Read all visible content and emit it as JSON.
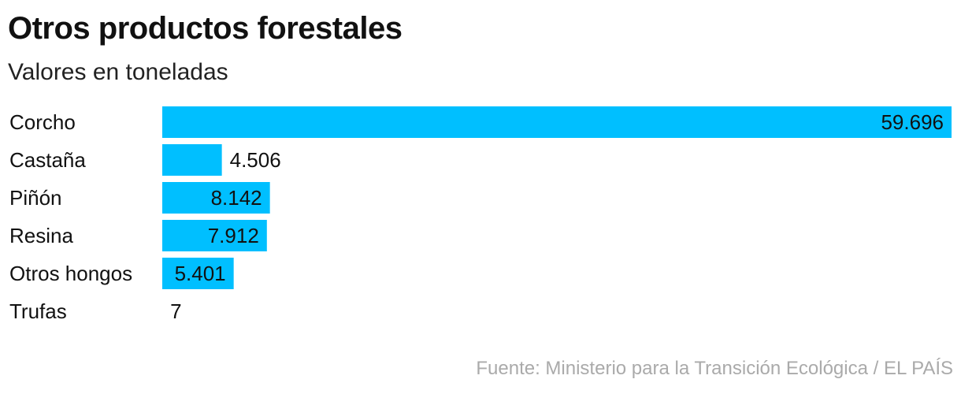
{
  "chart_data": {
    "type": "bar",
    "orientation": "horizontal",
    "title": "Otros productos forestales",
    "subtitle": "Valores en toneladas",
    "categories": [
      "Corcho",
      "Castaña",
      "Piñón",
      "Resina",
      "Otros hongos",
      "Trufas"
    ],
    "values": [
      59696,
      4506,
      8142,
      7912,
      5401,
      7
    ],
    "value_labels": [
      "59.696",
      "4.506",
      "8.142",
      "7.912",
      "5.401",
      "7"
    ],
    "xlim": [
      0,
      59696
    ],
    "grid": false,
    "bar_color": "#00bfff"
  },
  "source": "Fuente: Ministerio para la Transición Ecológica / EL PAÍS"
}
